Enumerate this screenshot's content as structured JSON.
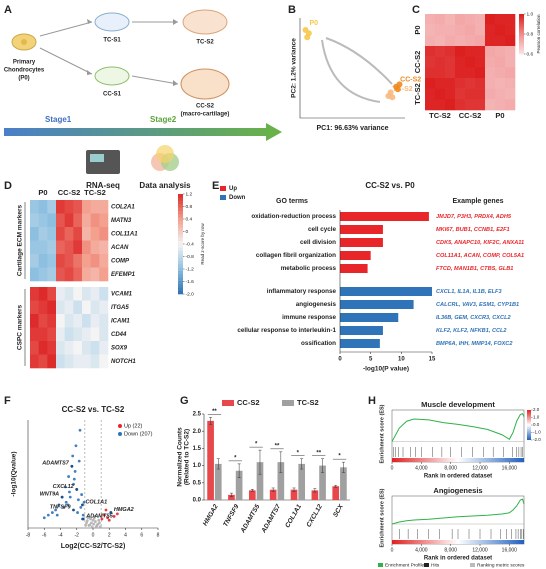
{
  "panel_a": {
    "label": "A",
    "source": [
      "Primary",
      "Chondrocytes",
      "(P0)"
    ],
    "nodes": [
      "TC-S1",
      "TC-S2",
      "CC-S1"
    ],
    "final": [
      "CC-S2",
      "(macro-cartilage)"
    ],
    "stages": [
      "Stage1",
      "Stage2"
    ],
    "outputs": [
      "RNA-seq",
      "Data analysis"
    ]
  },
  "chart_data": [
    {
      "type": "scatter",
      "label": "B",
      "xlabel": "PC1: 96.63% variance",
      "ylabel": "PC2: 1.2% variance",
      "xlim": [
        -60,
        35
      ],
      "ylim": [
        -10,
        15
      ],
      "series": [
        {
          "name": "P0",
          "color": "#f6c84c",
          "x": [
            -55,
            -52,
            -53.5
          ],
          "values": [
            12,
            11.2,
            10.2
          ]
        },
        {
          "name": "TC-S2",
          "color": "#f7b87d",
          "x": [
            20,
            22,
            23.5
          ],
          "values": [
            -4.5,
            -3.6,
            -4.8
          ]
        },
        {
          "name": "CC-S2",
          "color": "#ef8a1f",
          "x": [
            27,
            28.5,
            30
          ],
          "values": [
            -2.2,
            -2.8,
            -1.6
          ]
        }
      ]
    },
    {
      "type": "heatmap",
      "label": "C",
      "column_groups": [
        "TC-S2",
        "CC-S2",
        "P0"
      ],
      "colors": [
        "#fbe4e4",
        "#f08d8d",
        "#dc1f1f"
      ],
      "zlim": [
        0.6,
        1.0
      ],
      "zticks": [
        {
          "value": 1.0,
          "label": "1.0"
        },
        {
          "value": 0.8,
          "label": "0.8"
        },
        {
          "value": 0.6,
          "label": "0.6"
        }
      ],
      "colorbar_title": "Pearson correlation",
      "row_groups": [
        {
          "name": "P0",
          "values": [
            [
              0.72,
              0.73,
              0.71,
              0.74,
              0.73,
              0.72,
              1.0,
              0.99,
              0.99
            ],
            [
              0.71,
              0.72,
              0.72,
              0.73,
              0.74,
              0.72,
              0.99,
              1.0,
              0.99
            ],
            [
              0.72,
              0.71,
              0.73,
              0.72,
              0.73,
              0.74,
              0.99,
              0.99,
              1.0
            ]
          ]
        },
        {
          "name": "CC-S2",
          "values": [
            [
              0.97,
              0.96,
              0.97,
              1.0,
              0.99,
              0.99,
              0.74,
              0.73,
              0.72
            ],
            [
              0.96,
              0.97,
              0.96,
              0.99,
              1.0,
              0.99,
              0.73,
              0.74,
              0.72
            ],
            [
              0.97,
              0.97,
              0.96,
              0.99,
              0.99,
              1.0,
              0.72,
              0.73,
              0.74
            ]
          ]
        },
        {
          "name": "TC-S2",
          "values": [
            [
              1.0,
              0.99,
              0.99,
              0.97,
              0.96,
              0.97,
              0.72,
              0.71,
              0.72
            ],
            [
              0.99,
              1.0,
              0.99,
              0.96,
              0.97,
              0.97,
              0.73,
              0.72,
              0.71
            ],
            [
              0.99,
              0.99,
              1.0,
              0.97,
              0.96,
              0.96,
              0.71,
              0.72,
              0.73
            ]
          ]
        }
      ]
    },
    {
      "type": "heatmap",
      "label": "D",
      "column_groups": [
        "P0",
        "CC-S2",
        "TC-S2"
      ],
      "colors": [
        "#2a6fb4",
        "#8cbfe0",
        "#f4f4f4",
        "#f4a08e",
        "#dd2a2a"
      ],
      "zlim": [
        -2,
        1.2
      ],
      "zticks": [
        1.2,
        0.8,
        0.4,
        0,
        -0.4,
        -0.8,
        -1.2,
        -1.6,
        {
          "value": -2,
          "label": "-2.0"
        }
      ],
      "colorbar_title": "Read z-score by row",
      "row_groups": [
        {
          "name": "Cartilage ECM markers",
          "genes": [
            "COL2A1",
            "MATN3",
            "COL11A1",
            "ACAN",
            "COMP",
            "EFEMP1"
          ],
          "values": [
            [
              -1.1,
              -1.2,
              -1.0,
              1.1,
              1.0,
              0.9,
              0.4,
              0.3,
              0.3
            ],
            [
              -1.0,
              -1.1,
              -1.2,
              0.9,
              1.1,
              0.8,
              0.3,
              0.5,
              0.4
            ],
            [
              -1.2,
              -1.0,
              -1.1,
              1.0,
              0.8,
              1.0,
              0.2,
              0.4,
              0.5
            ],
            [
              -1.1,
              -1.1,
              -1.0,
              0.8,
              0.9,
              1.1,
              0.5,
              0.3,
              0.2
            ],
            [
              -1.0,
              -1.2,
              -1.1,
              1.0,
              0.9,
              0.7,
              0.4,
              0.5,
              0.3
            ],
            [
              -1.2,
              -1.1,
              -1.0,
              0.9,
              1.0,
              0.8,
              0.3,
              0.2,
              0.4
            ]
          ]
        },
        {
          "name": "CSPC markers",
          "genes": [
            "VCAM1",
            "ITGA5",
            "ICAM1",
            "CD44",
            "SOX9",
            "NOTCH1"
          ],
          "values": [
            [
              1.1,
              1.2,
              1.0,
              -0.5,
              -0.6,
              -0.4,
              -0.6,
              -0.5,
              -0.7
            ],
            [
              1.0,
              1.1,
              1.2,
              -0.6,
              -0.5,
              -0.7,
              -0.4,
              -0.6,
              -0.5
            ],
            [
              1.2,
              1.0,
              1.1,
              -0.4,
              -0.6,
              -0.5,
              -0.7,
              -0.5,
              -0.6
            ],
            [
              1.1,
              1.1,
              1.0,
              -0.5,
              -0.7,
              -0.6,
              -0.5,
              -0.4,
              -0.6
            ],
            [
              1.0,
              1.2,
              1.1,
              -0.6,
              -0.5,
              -0.4,
              -0.6,
              -0.7,
              -0.5
            ],
            [
              1.1,
              1.0,
              1.2,
              -0.7,
              -0.6,
              -0.5,
              -0.5,
              -0.6,
              -0.4
            ]
          ]
        }
      ]
    },
    {
      "type": "bar",
      "orientation": "horizontal",
      "label": "E",
      "title": "CC-S2 vs. P0",
      "headers": [
        "GO terms",
        "Example genes"
      ],
      "xlabel": "-log10(P value)",
      "xlim": [
        0,
        15
      ],
      "xticks": [
        0,
        5,
        10,
        15
      ],
      "series": [
        {
          "name": "Up",
          "color": "#e8262a",
          "categories": [
            "oxidation-reduction process",
            "cell cycle",
            "cell division",
            "collagen fibril organization",
            "metabolic process"
          ],
          "values": [
            14.5,
            7,
            7,
            5,
            4.5
          ],
          "genes": [
            "JMJD7, P3H3, PRDX4, ADH5",
            "MKI67, BUB1, CCNB1, E2F1",
            "CDK5, ANAPC10, KIF2C, ANXA11",
            "COL11A1, ACAN, COMP, COL5A1",
            "FTCD, MAN1B1, CTBS, GLB1"
          ]
        },
        {
          "name": "Down",
          "color": "#2f73b8",
          "categories": [
            "inflammatory response",
            "angiogenesis",
            "immune response",
            "cellular response to interleukin-1",
            "ossification"
          ],
          "values": [
            15,
            12,
            9.5,
            7,
            6.5
          ],
          "genes": [
            "CXCL1, IL1A, IL1B, ELF3",
            "CALCRL, VAV3, ESM1, CYP1B1",
            "IL36B, GEM, CXCR3, CXCL2",
            "KLF2, KLF2, NFKB1, CCL2",
            "BMP6A, IHH, MMP14, FOXC2"
          ]
        }
      ]
    },
    {
      "type": "scatter",
      "label": "F",
      "title": "CC-S2 vs. TC-S2",
      "xlabel": "Log2(CC-S2/TC-S2)",
      "ylabel": "-log10(Qvalue)",
      "xlim": [
        -8,
        8
      ],
      "ylim": [
        0,
        4.2
      ],
      "xticks": [
        -8,
        -6,
        -4,
        -2,
        0,
        2,
        4,
        6,
        8
      ],
      "vlines": [
        -1,
        1
      ],
      "legend": true,
      "series": [
        {
          "color": "#b0b0b0",
          "x": [
            -0.8,
            -0.5,
            -0.3,
            -0.1,
            0.1,
            0.3,
            0.5,
            0.7,
            -0.6,
            -0.2,
            0.2,
            0.6,
            0.9,
            -0.9,
            0.0,
            0.4,
            -0.4,
            0.8,
            -0.7,
            0.15
          ],
          "values": [
            0.2,
            0.1,
            0.35,
            0.05,
            0.15,
            0.25,
            0.1,
            0.3,
            0.4,
            0.2,
            0.45,
            0.15,
            0.05,
            0.1,
            0.3,
            0.05,
            0.12,
            0.2,
            0.28,
            0.38
          ]
        },
        {
          "name": "Up (22)",
          "color": "#e8262a",
          "x": [
            1.1,
            1.4,
            1.8,
            2.2,
            2.6,
            3.0,
            1.6,
            2.0
          ],
          "values": [
            0.35,
            0.5,
            0.4,
            0.6,
            0.45,
            0.55,
            0.7,
            0.3
          ]
        },
        {
          "name": "Down (207)",
          "color": "#2f73b8",
          "x": [
            -1.2,
            -1.5,
            -1.8,
            -2.0,
            -2.3,
            -2.6,
            -3.0,
            -3.4,
            -3.8,
            -4.2,
            -4.6,
            -5.0,
            -5.5,
            -6.0,
            -1.4,
            -1.7,
            -2.1,
            -2.5,
            -2.9,
            -3.3,
            -1.3,
            -1.9,
            -2.4,
            -3.6,
            -4.4,
            -1.6,
            -2.2,
            -2.8,
            -3.1,
            -1.1
          ],
          "values": [
            0.5,
            0.8,
            1.1,
            1.5,
            1.9,
            2.4,
            2.0,
            1.6,
            1.2,
            0.9,
            0.7,
            0.6,
            0.5,
            0.4,
            1.3,
            2.6,
            3.2,
            2.8,
            1.4,
            1.0,
            0.35,
            0.6,
            1.7,
            0.8,
            0.5,
            3.8,
            2.2,
            1.2,
            0.9,
            1.0
          ]
        }
      ],
      "annotations": [
        {
          "text": "ADAMTS7",
          "x": -2.6,
          "y": 2.4
        },
        {
          "text": "CXCL12",
          "x": -2.0,
          "y": 1.5
        },
        {
          "text": "WNT9A",
          "x": -3.8,
          "y": 1.2
        },
        {
          "text": "TNFSF9",
          "x": -2.4,
          "y": 0.7
        },
        {
          "text": "COL1A1",
          "x": -1.3,
          "y": 0.9
        },
        {
          "text": "ADAMTS5",
          "x": -1.2,
          "y": 0.35
        },
        {
          "text": "HMGA2",
          "x": 2.2,
          "y": 0.6
        }
      ]
    },
    {
      "type": "bar",
      "label": "G",
      "ylabel": [
        "Normalized Counts",
        "(Related to TC-S2)"
      ],
      "ylim": [
        0,
        2.5
      ],
      "yticks": [
        {
          "value": 0,
          "label": "0.0"
        },
        0.5,
        {
          "value": 1,
          "label": "1.0"
        },
        1.5,
        {
          "value": 2,
          "label": "2.0"
        },
        2.5
      ],
      "categories": [
        "HMGA2",
        "TNFSF9",
        "ADAMTS5",
        "ADAMTS7",
        "COL1A1",
        "CXCL12",
        "SCX"
      ],
      "significance": [
        "**",
        "*",
        "*",
        "**",
        "*",
        "**",
        "*"
      ],
      "series": [
        {
          "name": "CC-S2",
          "color": "#e8474c",
          "values": [
            2.3,
            0.15,
            0.28,
            0.3,
            0.3,
            0.28,
            0.4
          ],
          "errors": [
            0.1,
            0.05,
            0.03,
            0.05,
            0.05,
            0.05,
            0.03
          ]
        },
        {
          "name": "TC-S2",
          "color": "#a0a0a0",
          "values": [
            1.05,
            0.85,
            1.1,
            1.1,
            1.05,
            1.0,
            0.95
          ],
          "errors": [
            0.15,
            0.2,
            0.35,
            0.3,
            0.15,
            0.2,
            0.15
          ]
        }
      ]
    },
    {
      "type": "line",
      "label": "H",
      "xlabel": "Rank in ordered dataset",
      "ylabel": "Enrichment score (ES)",
      "color": "#2fb24a",
      "xlim": [
        0,
        18000
      ],
      "xticks": [
        0,
        {
          "value": 4000,
          "label": "4,000"
        },
        {
          "value": 8000,
          "label": "8,000"
        },
        {
          "value": 12000,
          "label": "12,000"
        },
        {
          "value": 16000,
          "label": "16,000"
        }
      ],
      "zticks": [
        {
          "value": 2,
          "label": "2.0"
        },
        {
          "value": 1,
          "label": "1.0"
        },
        {
          "value": 0,
          "label": "0.0"
        },
        {
          "value": -1,
          "label": "-1.0"
        },
        {
          "value": -2,
          "label": "-2.0"
        }
      ],
      "legend": [
        "Enrichment Profile",
        "Hits",
        "Ranking metric scores"
      ],
      "panels": [
        {
          "title": "Muscle development",
          "ylim": [
            -0.1,
            0.7
          ],
          "x": [
            0,
            1000,
            2000,
            3000,
            5000,
            7000,
            9000,
            11000,
            13000,
            15000,
            16000,
            16500,
            17000,
            17500,
            17800,
            18000
          ],
          "values": [
            0,
            0.3,
            0.45,
            0.5,
            0.48,
            0.42,
            0.38,
            0.33,
            0.27,
            0.15,
            0.05,
            0.2,
            0.45,
            0.6,
            0.62,
            0.55
          ],
          "hits": [
            200,
            500,
            900,
            1500,
            2500,
            3200,
            4000,
            5500,
            6800,
            8000,
            9500,
            11000,
            12500,
            13800,
            15200,
            16400,
            17000,
            17300,
            17600,
            17800
          ]
        },
        {
          "title": "Angiogenesis",
          "ylim": [
            -0.1,
            0.7
          ],
          "x": [
            0,
            1000,
            2000,
            3000,
            5000,
            7000,
            9000,
            11000,
            13000,
            15000,
            16000,
            16500,
            17000,
            17500,
            17800,
            18000
          ],
          "values": [
            0,
            0.05,
            0.08,
            0.1,
            0.12,
            0.15,
            0.18,
            0.2,
            0.22,
            0.25,
            0.28,
            0.35,
            0.45,
            0.6,
            0.62,
            0.5
          ],
          "hits": [
            1000,
            2200,
            3500,
            5000,
            6500,
            8200,
            9000,
            10500,
            12000,
            13500,
            14800,
            15600,
            16300,
            16900,
            17200,
            17500,
            17700,
            17900
          ]
        }
      ]
    }
  ]
}
